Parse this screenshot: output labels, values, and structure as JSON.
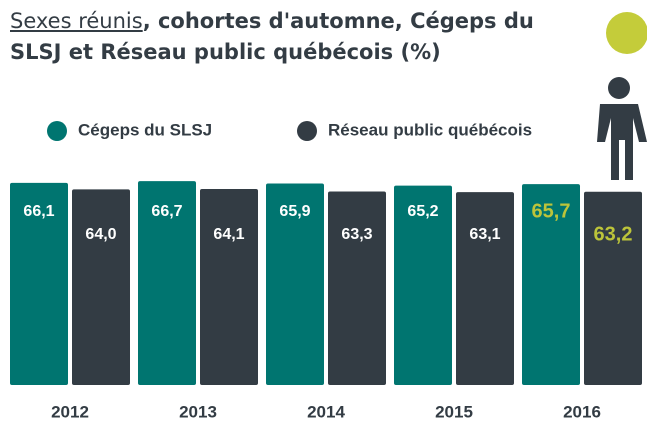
{
  "chart_data": {
    "type": "bar",
    "title": {
      "underlined": "Sexes réunis",
      "rest": ", cohortes d'automne, Cégeps du SLSJ et Réseau public québécois (%)"
    },
    "categories": [
      "2012",
      "2013",
      "2014",
      "2015",
      "2016"
    ],
    "series": [
      {
        "name": "Cégeps du SLSJ",
        "color": "#007570",
        "values": [
          66.1,
          66.7,
          65.9,
          65.2,
          65.7
        ],
        "value_labels": [
          "66,1",
          "66,7",
          "65,9",
          "65,2",
          "65,7"
        ]
      },
      {
        "name": "Réseau public québécois",
        "color": "#333c44",
        "values": [
          64.0,
          64.1,
          63.3,
          63.1,
          63.2
        ],
        "value_labels": [
          "64,0",
          "64,1",
          "63,3",
          "63,1",
          "63,2"
        ]
      }
    ],
    "ylim": [
      0,
      70
    ],
    "highlight": {
      "category": 4,
      "color": "#bcc43a"
    }
  }
}
